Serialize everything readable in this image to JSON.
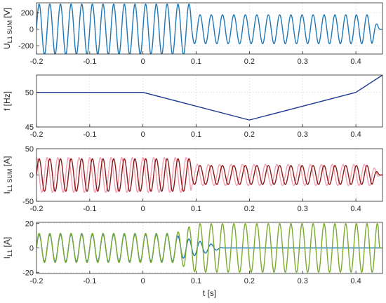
{
  "chart_data": [
    {
      "type": "line",
      "ylabel_main": "U",
      "ylabel_sub": "L1 SUM",
      "ylabel_unit": "[V]",
      "xlim": [
        -0.2,
        0.45
      ],
      "ylim": [
        -300,
        320
      ],
      "xticks": [
        -0.2,
        -0.1,
        0,
        0.1,
        0.2,
        0.3,
        0.4
      ],
      "xtick_labels": [
        "-0.2",
        "-0.1",
        "0",
        "0.1",
        "0.2",
        "0.3",
        "0.4"
      ],
      "yticks": [
        200,
        0,
        -200
      ],
      "ytick_labels": [
        "200",
        "0",
        "-200"
      ],
      "grid": true,
      "series": [
        {
          "color": "#1f77b4",
          "kind": "sine",
          "frequency_profile_hz": {
            "x": [
              -0.2,
              0.0,
              0.2,
              0.4,
              0.45
            ],
            "y": [
              50,
              50,
              46,
              50,
              52
            ]
          },
          "amplitude_profile": {
            "x": [
              -0.2,
              0.09,
              0.092,
              0.43,
              0.445
            ],
            "y": [
              305,
              305,
              175,
              175,
              0
            ]
          }
        }
      ]
    },
    {
      "type": "line",
      "ylabel_main": "f",
      "ylabel_sub": "",
      "ylabel_unit": "[Hz]",
      "xlim": [
        -0.2,
        0.45
      ],
      "ylim": [
        45,
        52.5
      ],
      "xticks": [
        -0.2,
        -0.1,
        0,
        0.1,
        0.2,
        0.3,
        0.4
      ],
      "xtick_labels": [
        "-0.2",
        "-0.1",
        "0",
        "0.1",
        "0.2",
        "0.3",
        "0.4"
      ],
      "yticks": [
        50,
        45
      ],
      "ytick_labels": [
        "50",
        "45"
      ],
      "grid": true,
      "series": [
        {
          "color": "#1f3a93",
          "x": [
            -0.2,
            0.0,
            0.2,
            0.4,
            0.45
          ],
          "y": [
            50,
            50,
            46,
            50,
            52.5
          ]
        }
      ]
    },
    {
      "type": "line",
      "ylabel_main": "I",
      "ylabel_sub": "L1 SUM",
      "ylabel_unit": "[A]",
      "xlim": [
        -0.2,
        0.45
      ],
      "ylim": [
        -50,
        50
      ],
      "xticks": [
        -0.2,
        -0.1,
        0,
        0.1,
        0.2,
        0.3,
        0.4
      ],
      "xtick_labels": [
        "-0.2",
        "-0.1",
        "0",
        "0.1",
        "0.2",
        "0.3",
        "0.4"
      ],
      "yticks": [
        50,
        0,
        -50
      ],
      "ytick_labels": [
        "50",
        "0",
        "-50"
      ],
      "grid": true,
      "series": [
        {
          "color": "#f5a0b0",
          "kind": "sine",
          "phase": 0.25,
          "frequency_profile_hz": {
            "x": [
              -0.2,
              0.0,
              0.2,
              0.4,
              0.45
            ],
            "y": [
              50,
              50,
              46,
              50,
              52
            ]
          },
          "amplitude_profile": {
            "x": [
              -0.2,
              0.09,
              0.092,
              0.43,
              0.445
            ],
            "y": [
              33,
              33,
              20,
              20,
              0
            ]
          }
        },
        {
          "color": "#8b1a1a",
          "kind": "sine",
          "phase": 0.0,
          "frequency_profile_hz": {
            "x": [
              -0.2,
              0.0,
              0.2,
              0.4,
              0.45
            ],
            "y": [
              50,
              50,
              46,
              50,
              52
            ]
          },
          "amplitude_profile": {
            "x": [
              -0.2,
              0.09,
              0.092,
              0.43,
              0.445
            ],
            "y": [
              31,
              31,
              18,
              18,
              0
            ]
          }
        }
      ]
    },
    {
      "type": "line",
      "ylabel_main": "I",
      "ylabel_sub": "L1",
      "ylabel_unit": "[A]",
      "xlabel": "t [s]",
      "xlim": [
        -0.2,
        0.45
      ],
      "ylim": [
        -21,
        21
      ],
      "xticks": [
        -0.2,
        -0.1,
        0,
        0.1,
        0.2,
        0.3,
        0.4
      ],
      "xtick_labels": [
        "-0.2",
        "-0.1",
        "0",
        "0.1",
        "0.2",
        "0.3",
        "0.4"
      ],
      "yticks": [
        20,
        0,
        -20
      ],
      "ytick_labels": [
        "20",
        "0",
        "-20"
      ],
      "grid": true,
      "series": [
        {
          "color": "#1f77b4",
          "kind": "sine",
          "phase": 0.0,
          "frequency_profile_hz": {
            "x": [
              -0.2,
              0.0,
              0.2,
              0.4,
              0.45
            ],
            "y": [
              50,
              50,
              46,
              50,
              52
            ]
          },
          "amplitude_profile": {
            "x": [
              -0.2,
              0.06,
              0.07,
              0.1,
              0.13,
              0.15,
              0.45
            ],
            "y": [
              11,
              11,
              9,
              6,
              3,
              0,
              0
            ]
          }
        },
        {
          "color": "#7aab2f",
          "kind": "sine",
          "phase": 0.0,
          "frequency_profile_hz": {
            "x": [
              -0.2,
              0.0,
              0.2,
              0.4,
              0.45
            ],
            "y": [
              50,
              50,
              46,
              50,
              52
            ]
          },
          "amplitude_profile": {
            "x": [
              -0.2,
              0.06,
              0.07,
              0.09,
              0.1,
              0.43,
              0.442,
              0.445
            ],
            "y": [
              12,
              12,
              14,
              18,
              20,
              20,
              20,
              0
            ]
          }
        }
      ]
    }
  ]
}
